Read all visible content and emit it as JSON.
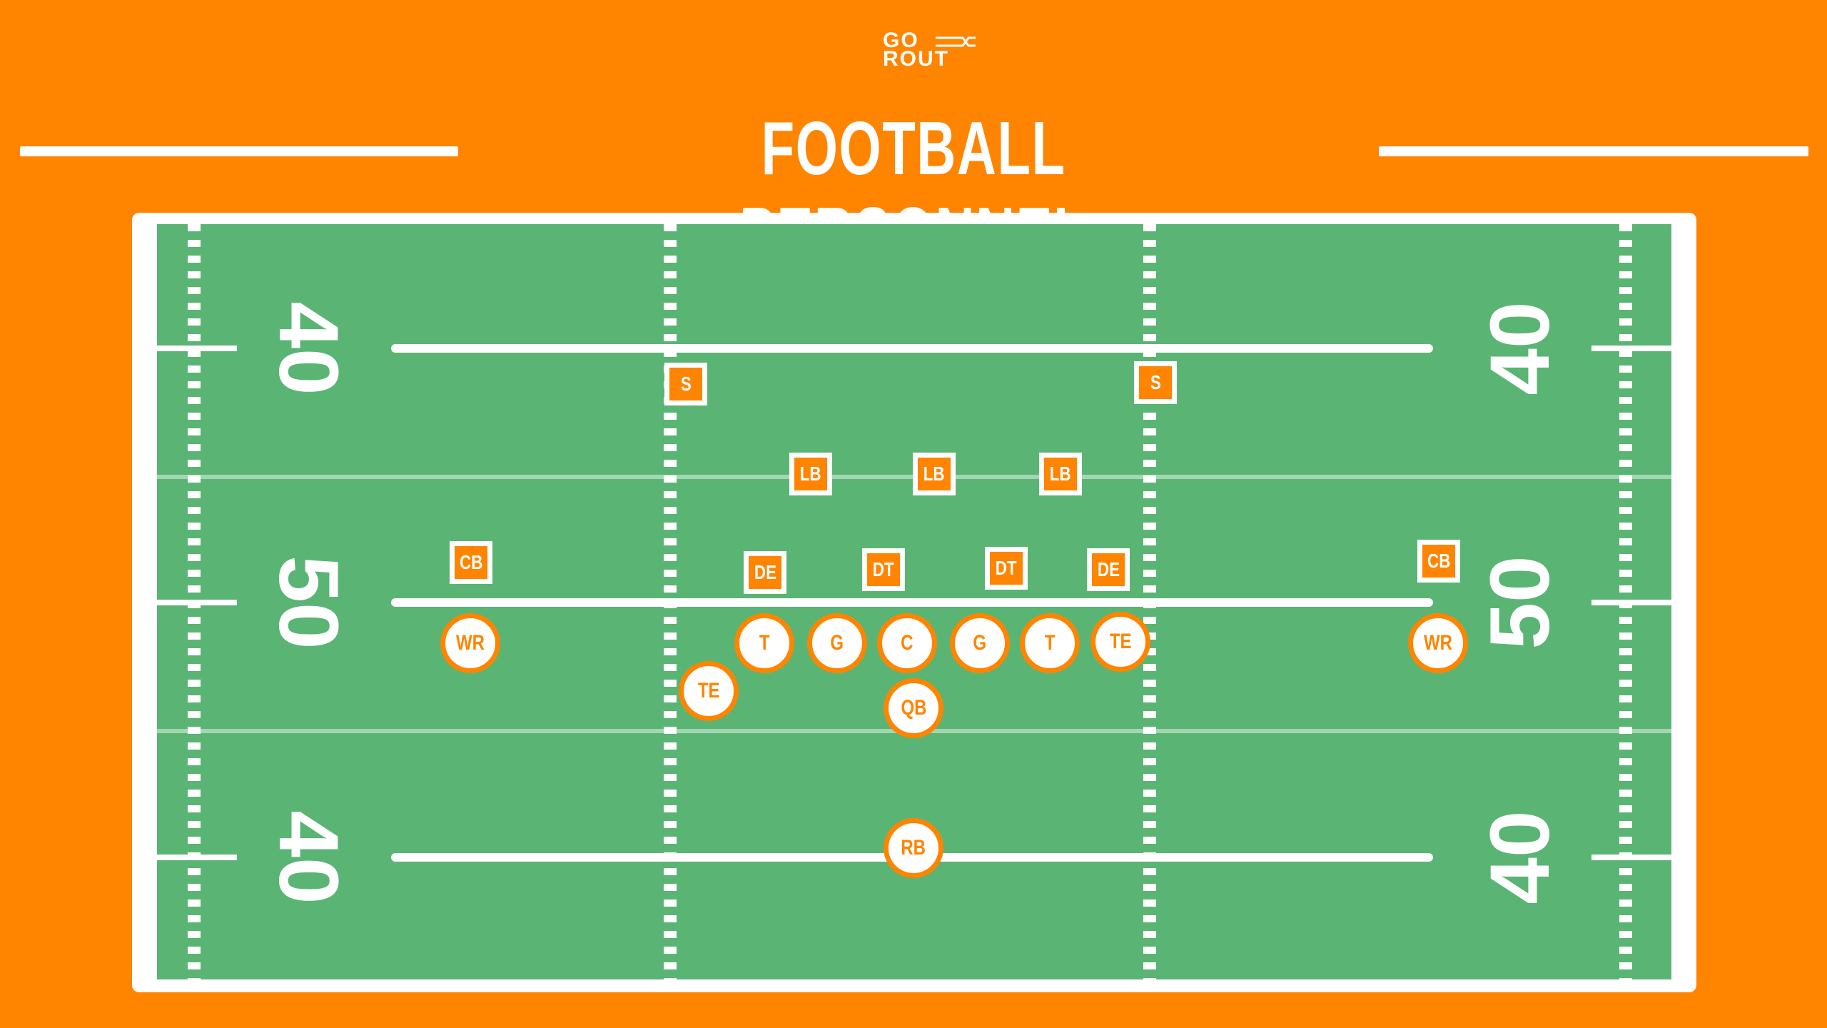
{
  "logo": {
    "line1": "GO",
    "line2": "ROUT"
  },
  "title": "FOOTBALL PERSONNEL GROUPINGS",
  "colors": {
    "background": "#ff8400",
    "field": "#5ab574",
    "lines": "#ffffff",
    "marker": "#ff8400"
  },
  "yard_numbers": {
    "top": "40",
    "middle": "50",
    "bottom": "40"
  },
  "defense": [
    {
      "label": "S"
    },
    {
      "label": "S"
    },
    {
      "label": "LB"
    },
    {
      "label": "LB"
    },
    {
      "label": "LB"
    },
    {
      "label": "CB"
    },
    {
      "label": "DE"
    },
    {
      "label": "DT"
    },
    {
      "label": "DT"
    },
    {
      "label": "DE"
    },
    {
      "label": "CB"
    }
  ],
  "offense": [
    {
      "label": "WR"
    },
    {
      "label": "T"
    },
    {
      "label": "G"
    },
    {
      "label": "C"
    },
    {
      "label": "G"
    },
    {
      "label": "T"
    },
    {
      "label": "TE"
    },
    {
      "label": "WR"
    },
    {
      "label": "TE"
    },
    {
      "label": "QB"
    },
    {
      "label": "RB"
    }
  ]
}
